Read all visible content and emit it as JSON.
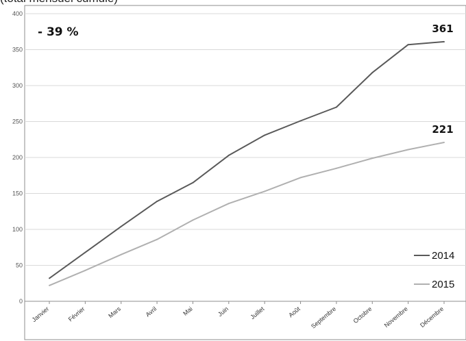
{
  "page_title": "(total mensuel cumulé)",
  "chart_data": {
    "type": "line",
    "title": "",
    "xlabel": "",
    "ylabel": "",
    "categories": [
      "Janvier",
      "Février",
      "Mars",
      "Avril",
      "Mai",
      "Juin",
      "Juillet",
      "Août",
      "Septembre",
      "Octobre",
      "Novembre",
      "Décembre"
    ],
    "ylim": [
      0,
      400
    ],
    "yticks": [
      "0",
      "50",
      "100",
      "150",
      "200",
      "250",
      "300",
      "350",
      "400"
    ],
    "grid": true,
    "legend_position": "bottom-right",
    "series": [
      {
        "name": "2014",
        "color": "#595959",
        "values": [
          32,
          68,
          104,
          139,
          165,
          203,
          231,
          251,
          270,
          318,
          357,
          361
        ],
        "end_label": "361"
      },
      {
        "name": "2015",
        "color": "#b0b0b0",
        "values": [
          22,
          43,
          65,
          86,
          113,
          136,
          153,
          172,
          185,
          199,
          211,
          221
        ],
        "end_label": "221"
      }
    ],
    "annotation": "- 39 %"
  }
}
